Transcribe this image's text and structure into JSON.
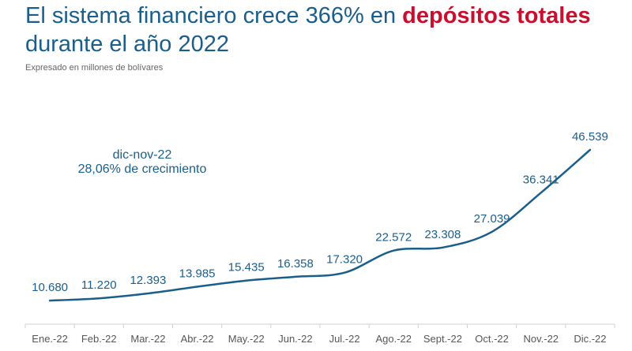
{
  "header": {
    "title_part1": "El sistema financiero crece 366% en ",
    "title_highlight": "depósitos totales",
    "title_part2": "durante el año 2022",
    "subtitle": "Expresado en millones de bolívares"
  },
  "colors": {
    "line": "#1a5e8c",
    "highlight": "#c8102e",
    "axis": "#d0d0d0"
  },
  "annotation": {
    "line1": "dic-nov-22",
    "line2": "28,06% de crecimiento"
  },
  "chart_data": {
    "type": "line",
    "title": "El sistema financiero crece 366% en depósitos totales durante el año 2022",
    "subtitle": "Expresado en millones de bolívares",
    "categories": [
      "Ene.-22",
      "Feb.-22",
      "Mar.-22",
      "Abr.-22",
      "May.-22",
      "Jun.-22",
      "Jul.-22",
      "Ago.-22",
      "Sept.-22",
      "Oct.-22",
      "Nov.-22",
      "Dic.-22"
    ],
    "values": [
      10680,
      11220,
      12393,
      13985,
      15435,
      16358,
      17320,
      22572,
      23308,
      27039,
      36341,
      46539
    ],
    "value_labels": [
      "10.680",
      "11.220",
      "12.393",
      "13.985",
      "15.435",
      "16.358",
      "17.320",
      "22.572",
      "23.308",
      "27.039",
      "36.341",
      "46.539"
    ],
    "xlabel": "",
    "ylabel": "",
    "ylim": [
      0,
      46539
    ],
    "grid": false,
    "smooth": true
  }
}
